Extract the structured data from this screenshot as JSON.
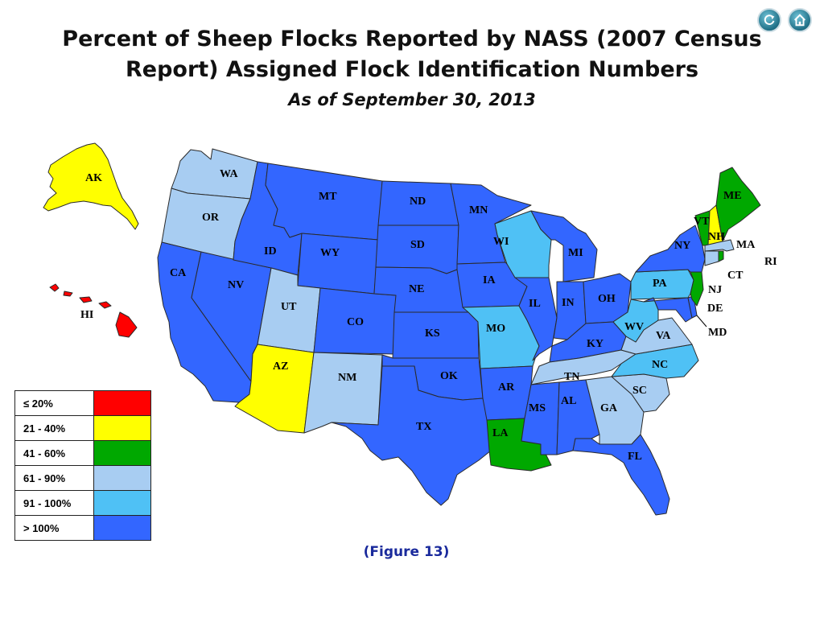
{
  "title_line1": "Percent of Sheep Flocks Reported by NASS (2007 Census",
  "title_line2": "Report) Assigned Flock Identification Numbers",
  "subtitle": "As of September 30, 2013",
  "figure_caption": "(Figure 13)",
  "nav": {
    "refresh_icon": "refresh-icon",
    "home_icon": "home-icon"
  },
  "legend": [
    {
      "range": "≤ 20%",
      "color": "#ff0000"
    },
    {
      "range": "21 - 40%",
      "color": "#ffff00"
    },
    {
      "range": "41 - 60%",
      "color": "#00a800"
    },
    {
      "range": "61 - 90%",
      "color": "#a8cdf2"
    },
    {
      "range": "91 - 100%",
      "color": "#4fc1f5"
    },
    {
      "range": "> 100%",
      "color": "#3366ff"
    }
  ],
  "states": {
    "AK": {
      "label": "AK",
      "category": "21 - 40%"
    },
    "HI": {
      "label": "HI",
      "category": "≤ 20%"
    },
    "WA": {
      "label": "WA",
      "category": "61 - 90%"
    },
    "OR": {
      "label": "OR",
      "category": "61 - 90%"
    },
    "CA": {
      "label": "CA",
      "category": "> 100%"
    },
    "NV": {
      "label": "NV",
      "category": "> 100%"
    },
    "ID": {
      "label": "ID",
      "category": "> 100%"
    },
    "MT": {
      "label": "MT",
      "category": "> 100%"
    },
    "WY": {
      "label": "WY",
      "category": "> 100%"
    },
    "UT": {
      "label": "UT",
      "category": "61 - 90%"
    },
    "AZ": {
      "label": "AZ",
      "category": "21 - 40%"
    },
    "CO": {
      "label": "CO",
      "category": "> 100%"
    },
    "NM": {
      "label": "NM",
      "category": "61 - 90%"
    },
    "ND": {
      "label": "ND",
      "category": "> 100%"
    },
    "SD": {
      "label": "SD",
      "category": "> 100%"
    },
    "NE": {
      "label": "NE",
      "category": "> 100%"
    },
    "KS": {
      "label": "KS",
      "category": "> 100%"
    },
    "OK": {
      "label": "OK",
      "category": "> 100%"
    },
    "TX": {
      "label": "TX",
      "category": "> 100%"
    },
    "MN": {
      "label": "MN",
      "category": "> 100%"
    },
    "IA": {
      "label": "IA",
      "category": "> 100%"
    },
    "MO": {
      "label": "MO",
      "category": "91 - 100%"
    },
    "AR": {
      "label": "AR",
      "category": "> 100%"
    },
    "LA": {
      "label": "LA",
      "category": "41 - 60%"
    },
    "WI": {
      "label": "WI",
      "category": "91 - 100%"
    },
    "IL": {
      "label": "IL",
      "category": "> 100%"
    },
    "MI": {
      "label": "MI",
      "category": "> 100%"
    },
    "IN": {
      "label": "IN",
      "category": "> 100%"
    },
    "OH": {
      "label": "OH",
      "category": "> 100%"
    },
    "KY": {
      "label": "KY",
      "category": "> 100%"
    },
    "TN": {
      "label": "TN",
      "category": "61 - 90%"
    },
    "MS": {
      "label": "MS",
      "category": "> 100%"
    },
    "AL": {
      "label": "AL",
      "category": "> 100%"
    },
    "GA": {
      "label": "GA",
      "category": "61 - 90%"
    },
    "FL": {
      "label": "FL",
      "category": "> 100%"
    },
    "SC": {
      "label": "SC",
      "category": "61 - 90%"
    },
    "NC": {
      "label": "NC",
      "category": "91 - 100%"
    },
    "VA": {
      "label": "VA",
      "category": "61 - 90%"
    },
    "WV": {
      "label": "WV",
      "category": "91 - 100%"
    },
    "PA": {
      "label": "PA",
      "category": "91 - 100%"
    },
    "NY": {
      "label": "NY",
      "category": "> 100%"
    },
    "VT": {
      "label": "VT",
      "category": "41 - 60%"
    },
    "NH": {
      "label": "NH",
      "category": "21 - 40%"
    },
    "ME": {
      "label": "ME",
      "category": "41 - 60%"
    },
    "MA": {
      "label": "MA",
      "category": "61 - 90%"
    },
    "RI": {
      "label": "RI",
      "category": "41 - 60%"
    },
    "CT": {
      "label": "CT",
      "category": "61 - 90%"
    },
    "NJ": {
      "label": "NJ",
      "category": "41 - 60%"
    },
    "DE": {
      "label": "DE",
      "category": "> 100%"
    },
    "MD": {
      "label": "MD",
      "category": "> 100%"
    }
  }
}
